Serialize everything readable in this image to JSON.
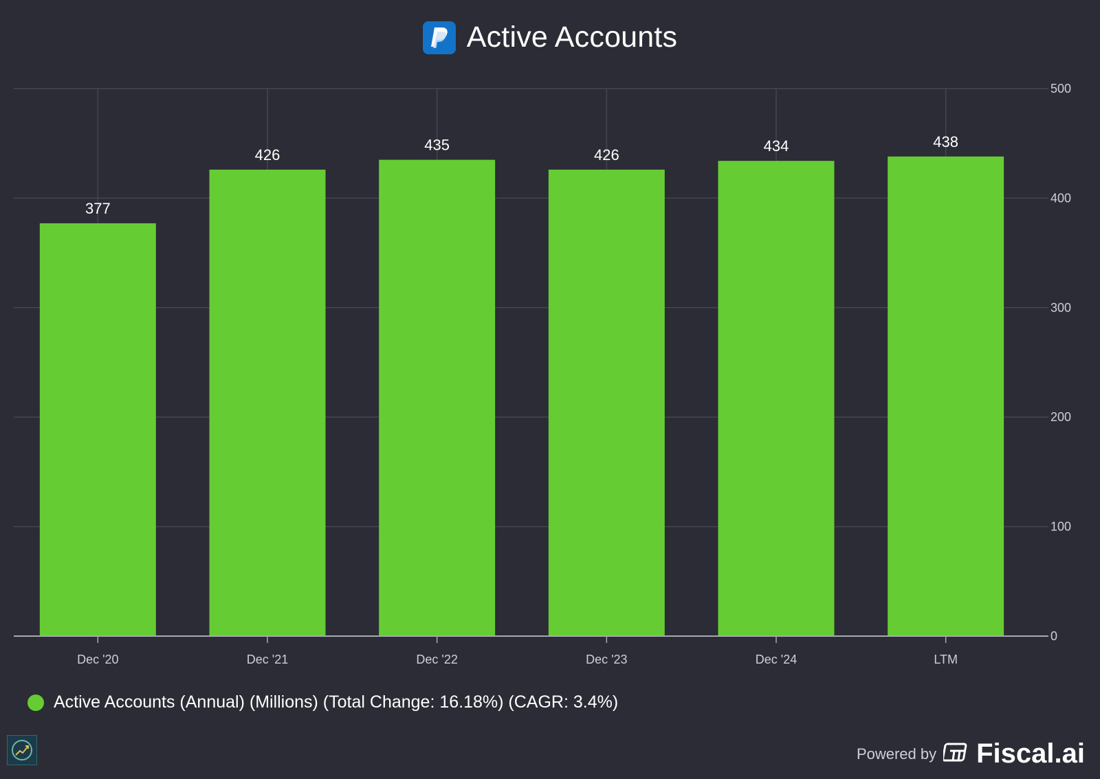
{
  "header": {
    "title": "Active Accounts"
  },
  "chart_data": {
    "type": "bar",
    "title": "Active Accounts",
    "categories": [
      "Dec '20",
      "Dec '21",
      "Dec '22",
      "Dec '23",
      "Dec '24",
      "LTM"
    ],
    "series": [
      {
        "name": "Active Accounts (Annual) (Millions) (Total Change: 16.18%) (CAGR: 3.4%)",
        "values": [
          377,
          426,
          435,
          426,
          434,
          438
        ],
        "color": "#66cc33"
      }
    ],
    "data_labels": [
      "377",
      "426",
      "435",
      "426",
      "434",
      "438"
    ],
    "ylim": [
      0,
      500
    ],
    "y_ticks": [
      0,
      100,
      200,
      300,
      400,
      500
    ],
    "y_axis_side": "right",
    "grid": true,
    "legend_position": "bottom-left",
    "xlabel": "",
    "ylabel": ""
  },
  "legend": {
    "label": "Active Accounts (Annual) (Millions) (Total Change: 16.18%) (CAGR: 3.4%)"
  },
  "footer": {
    "powered_by": "Powered by",
    "brand": "Fiscal.ai"
  },
  "colors": {
    "background": "#2b2c35",
    "bar": "#66cc33",
    "grid": "#45464f",
    "axis": "#a8a9b0"
  }
}
